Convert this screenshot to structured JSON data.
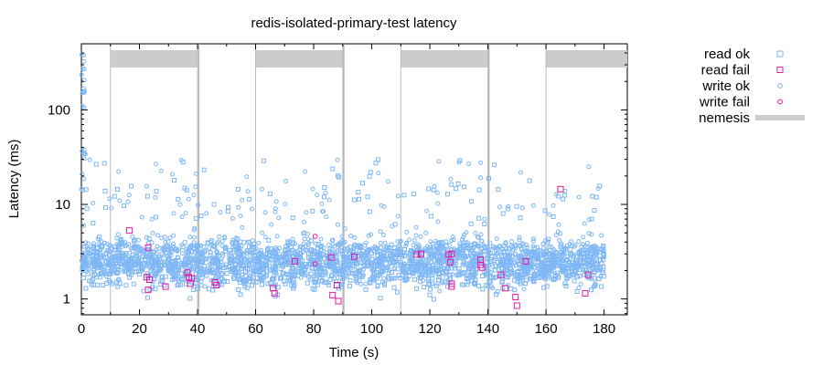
{
  "chart_data": {
    "type": "scatter",
    "title": "redis-isolated-primary-test latency",
    "xlabel": "Time (s)",
    "ylabel": "Latency (ms)",
    "xlim": [
      0,
      188
    ],
    "ylim": [
      0.68,
      500
    ],
    "yscale": "log",
    "grid": false,
    "legend_position": "outside-right",
    "x_ticks": [
      {
        "value": 0,
        "label": "0"
      },
      {
        "value": 20,
        "label": "20"
      },
      {
        "value": 40,
        "label": "40"
      },
      {
        "value": 60,
        "label": "60"
      },
      {
        "value": 80,
        "label": "80"
      },
      {
        "value": 100,
        "label": "100"
      },
      {
        "value": 120,
        "label": "120"
      },
      {
        "value": 140,
        "label": "140"
      },
      {
        "value": 160,
        "label": "160"
      },
      {
        "value": 180,
        "label": "180"
      }
    ],
    "y_ticks": [
      {
        "value": 1,
        "label": "1"
      },
      {
        "value": 10,
        "label": "10"
      },
      {
        "value": 100,
        "label": "100"
      }
    ],
    "colors": {
      "ok": "#7fb7f5",
      "fail": "#e01ba3",
      "nemesis": "#cccccc",
      "nemesis_line": "#bdbdbd"
    },
    "legend": [
      {
        "label": "read ok",
        "marker": "square",
        "color": "#7fb7f5"
      },
      {
        "label": "read fail",
        "marker": "square",
        "color": "#e01ba3"
      },
      {
        "label": "write ok",
        "marker": "circle",
        "color": "#7fb7f5"
      },
      {
        "label": "write fail",
        "marker": "circle",
        "color": "#e01ba3"
      },
      {
        "label": "nemesis",
        "marker": "bar",
        "color": "#cccccc"
      }
    ],
    "nemesis": {
      "start_lines": [
        10,
        40,
        60,
        90,
        110,
        140,
        160
      ],
      "end_lines": [
        40,
        90,
        140
      ],
      "intervals": [
        [
          10,
          40
        ],
        [
          60,
          90
        ],
        [
          110,
          140
        ],
        [
          160,
          188
        ]
      ]
    },
    "series": [
      {
        "name": "read fail",
        "marker": "square",
        "color": "#e01ba3",
        "points": [
          [
            16.5,
            5.3
          ],
          [
            23,
            3.5
          ],
          [
            22.5,
            1.7
          ],
          [
            23.5,
            1.6
          ],
          [
            23,
            1.25
          ],
          [
            29,
            1.35
          ],
          [
            36.5,
            1.9
          ],
          [
            37,
            1.7
          ],
          [
            37.5,
            1.45
          ],
          [
            38,
            1.65
          ],
          [
            46,
            1.5
          ],
          [
            46.5,
            1.4
          ],
          [
            66,
            1.3
          ],
          [
            66.5,
            1.15
          ],
          [
            73.5,
            2.5
          ],
          [
            86,
            2.75
          ],
          [
            86.5,
            1.1
          ],
          [
            88,
            1.4
          ],
          [
            88.5,
            0.95
          ],
          [
            94,
            2.8
          ],
          [
            115.5,
            2.95
          ],
          [
            117,
            3.0
          ],
          [
            126.5,
            2.95
          ],
          [
            127.5,
            3.0
          ],
          [
            127,
            2.45
          ],
          [
            127.5,
            1.45
          ],
          [
            127.5,
            1.35
          ],
          [
            137.5,
            2.6
          ],
          [
            137.5,
            2.3
          ],
          [
            138,
            2.15
          ],
          [
            144.5,
            1.8
          ],
          [
            146,
            1.3
          ],
          [
            149.5,
            1.05
          ],
          [
            150,
            0.85
          ],
          [
            153,
            2.5
          ],
          [
            165,
            14.5
          ],
          [
            173.5,
            1.15
          ],
          [
            174.5,
            1.8
          ]
        ]
      },
      {
        "name": "write fail",
        "marker": "circle",
        "color": "#e01ba3",
        "points": [
          [
            80.5,
            4.6
          ],
          [
            80.5,
            2.35
          ]
        ]
      }
    ],
    "dense_series": [
      {
        "name": "read ok",
        "marker": "square",
        "color": "#7fb7f5",
        "x_range": [
          0,
          180
        ],
        "approx_point_count": 1500,
        "core_latency_range": [
          0.9,
          6
        ],
        "median_latency": 2.2,
        "max_latency_outside_start": 30
      },
      {
        "name": "write ok",
        "marker": "circle",
        "color": "#7fb7f5",
        "x_range": [
          0,
          180
        ],
        "approx_point_count": 1400,
        "core_latency_range": [
          0.9,
          8
        ],
        "median_latency": 2.8,
        "max_latency_outside_start": 30,
        "startup_spike_range": [
          100,
          450
        ]
      }
    ]
  }
}
